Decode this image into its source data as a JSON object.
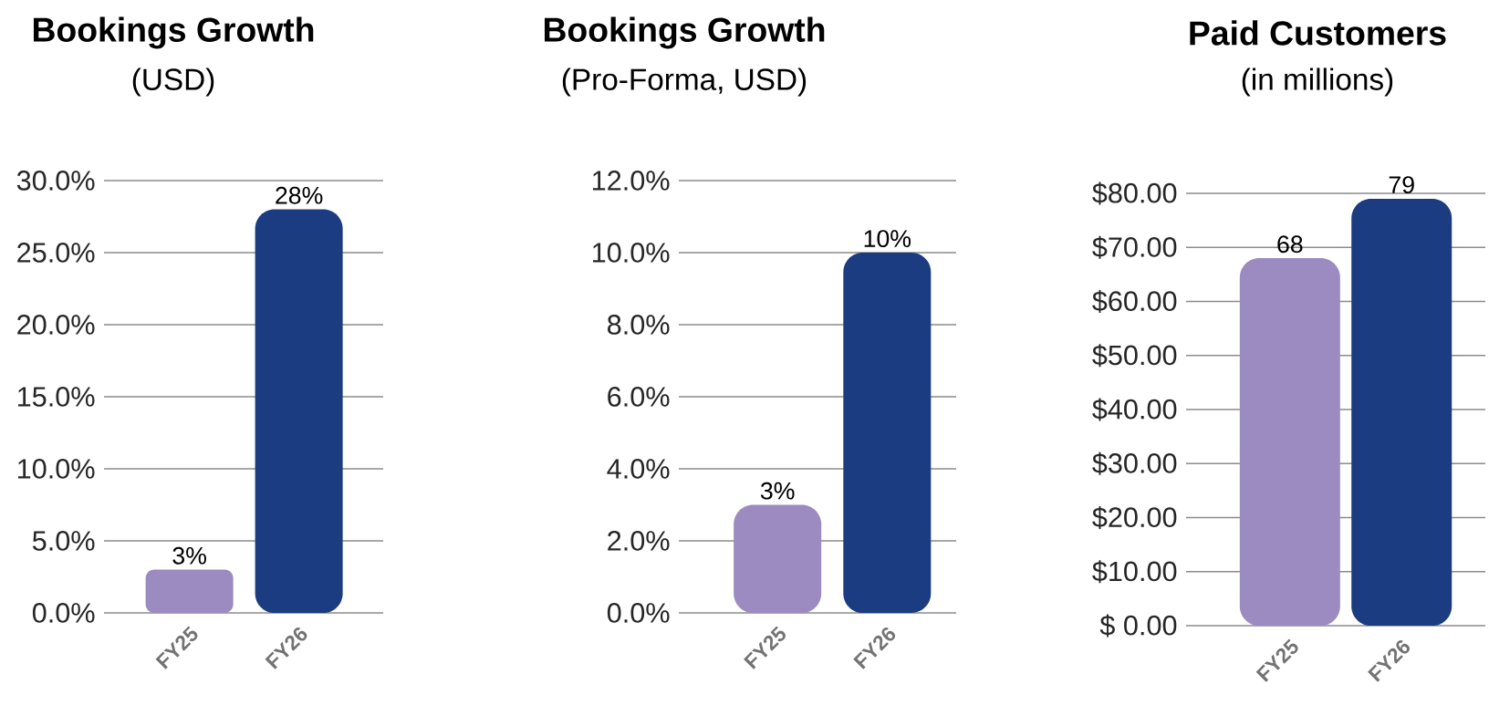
{
  "chart_data": [
    {
      "type": "bar",
      "title": "Bookings Growth",
      "subtitle": "(USD)",
      "categories": [
        "FY25",
        "FY26"
      ],
      "values": [
        3,
        28
      ],
      "value_labels": [
        "3%",
        "28%"
      ],
      "colors": [
        "#9b8bc0",
        "#1b3c80"
      ],
      "ylim": [
        0,
        30
      ],
      "yticks": [
        {
          "value": 0,
          "label": "0.0%"
        },
        {
          "value": 5,
          "label": "5.0%"
        },
        {
          "value": 10,
          "label": "10.0%"
        },
        {
          "value": 15,
          "label": "15.0%"
        },
        {
          "value": 20,
          "label": "20.0%"
        },
        {
          "value": 25,
          "label": "25.0%"
        },
        {
          "value": 30,
          "label": "30.0%"
        }
      ],
      "grid": "y"
    },
    {
      "type": "bar",
      "title": "Bookings Growth",
      "subtitle": "(Pro-Forma, USD)",
      "categories": [
        "FY25",
        "FY26"
      ],
      "values": [
        3,
        10
      ],
      "value_labels": [
        "3%",
        "10%"
      ],
      "colors": [
        "#9b8bc0",
        "#1b3c80"
      ],
      "ylim": [
        0,
        12
      ],
      "yticks": [
        {
          "value": 0,
          "label": "0.0%"
        },
        {
          "value": 2,
          "label": "2.0%"
        },
        {
          "value": 4,
          "label": "4.0%"
        },
        {
          "value": 6,
          "label": "6.0%"
        },
        {
          "value": 8,
          "label": "8.0%"
        },
        {
          "value": 10,
          "label": "10.0%"
        },
        {
          "value": 12,
          "label": "12.0%"
        }
      ],
      "grid": "y"
    },
    {
      "type": "bar",
      "title": "Paid Customers",
      "subtitle": "(in millions)",
      "categories": [
        "FY25",
        "FY26"
      ],
      "values": [
        68,
        79
      ],
      "data_labels": true,
      "colors": [
        "#9b8bc0",
        "#1b3c80"
      ],
      "ylim": [
        0,
        80
      ],
      "yticks": [
        {
          "value": 0,
          "label": "$  0.00"
        },
        {
          "value": 10,
          "label": "$10.00"
        },
        {
          "value": 20,
          "label": "$20.00"
        },
        {
          "value": 30,
          "label": "$30.00"
        },
        {
          "value": 40,
          "label": "$40.00"
        },
        {
          "value": 50,
          "label": "$50.00"
        },
        {
          "value": 60,
          "label": "$60.00"
        },
        {
          "value": 70,
          "label": "$70.00"
        },
        {
          "value": 80,
          "label": "$80.00"
        }
      ],
      "grid": "y"
    }
  ]
}
